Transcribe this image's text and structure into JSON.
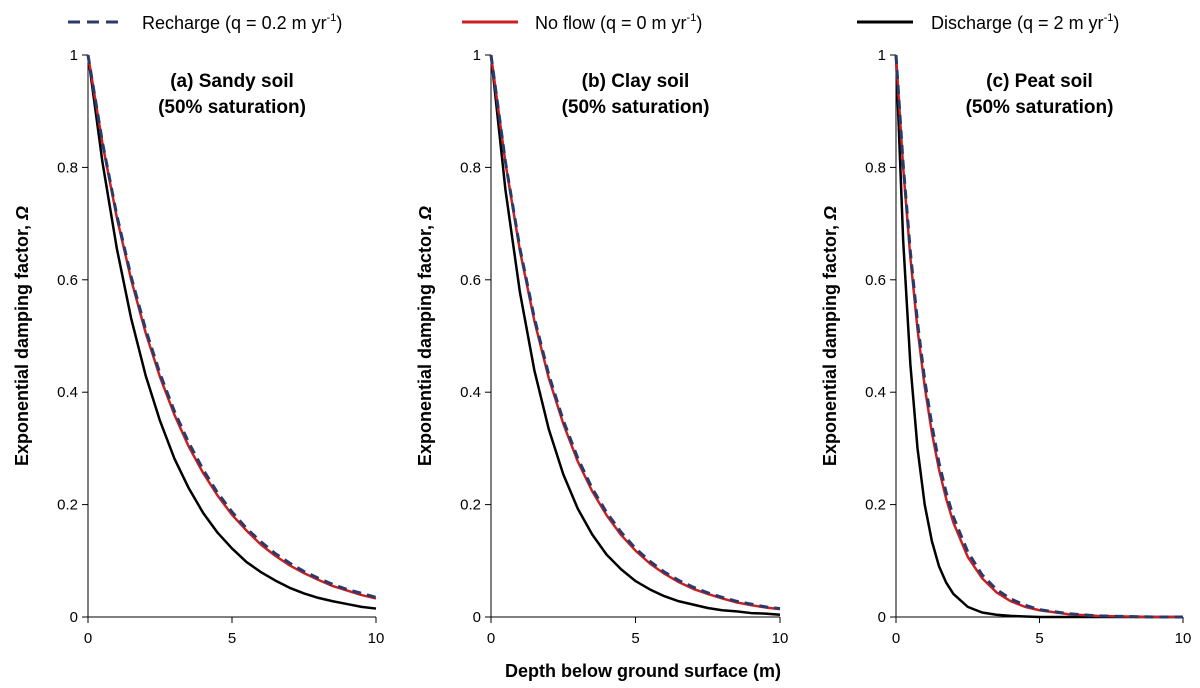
{
  "legend": {
    "recharge": "Recharge (q = 0.2 m yr-1)",
    "noflow": "No flow (q = 0 m yr-1)",
    "discharge": "Discharge (q = 2 m yr-1)"
  },
  "colors": {
    "recharge": "#2b3a6b",
    "noflow": "#cc1f1f",
    "discharge": "#000000"
  },
  "xlabel": "Depth below ground surface (m)",
  "chart_data": [
    {
      "type": "line",
      "title": [
        "(a) Sandy soil",
        "(50% saturation)"
      ],
      "xlabel": "Depth below ground surface (m)",
      "ylabel": "Exponential damping factor, Ω",
      "xlim": [
        0,
        10
      ],
      "ylim": [
        0,
        1
      ],
      "xticks": [
        0,
        5,
        10
      ],
      "yticks": [
        0,
        0.2,
        0.4,
        0.6,
        0.8,
        1
      ],
      "x": [
        0,
        0.5,
        1,
        1.5,
        2,
        2.5,
        3,
        3.5,
        4,
        4.5,
        5,
        5.5,
        6,
        6.5,
        7,
        7.5,
        8,
        8.5,
        9,
        9.5,
        10
      ],
      "series": [
        {
          "name": "Recharge (q = 0.2 m yr-1)",
          "key": "recharge",
          "values": [
            1,
            0.845,
            0.715,
            0.605,
            0.512,
            0.433,
            0.366,
            0.31,
            0.262,
            0.221,
            0.187,
            0.158,
            0.134,
            0.113,
            0.096,
            0.081,
            0.069,
            0.058,
            0.049,
            0.042,
            0.035
          ]
        },
        {
          "name": "No flow (q = 0 m yr-1)",
          "key": "noflow",
          "values": [
            1,
            0.843,
            0.711,
            0.6,
            0.506,
            0.427,
            0.36,
            0.303,
            0.256,
            0.216,
            0.182,
            0.154,
            0.129,
            0.109,
            0.092,
            0.078,
            0.066,
            0.055,
            0.047,
            0.039,
            0.033
          ]
        },
        {
          "name": "Discharge (q = 2 m yr-1)",
          "key": "discharge",
          "values": [
            1,
            0.81,
            0.656,
            0.531,
            0.43,
            0.349,
            0.282,
            0.229,
            0.185,
            0.15,
            0.122,
            0.098,
            0.08,
            0.065,
            0.052,
            0.042,
            0.034,
            0.028,
            0.023,
            0.018,
            0.015
          ]
        }
      ]
    },
    {
      "type": "line",
      "title": [
        "(b) Clay soil",
        "(50% saturation)"
      ],
      "xlabel": "Depth below ground surface (m)",
      "ylabel": "Exponential damping factor, Ω",
      "xlim": [
        0,
        10
      ],
      "ylim": [
        0,
        1
      ],
      "xticks": [
        0,
        5,
        10
      ],
      "yticks": [
        0,
        0.2,
        0.4,
        0.6,
        0.8,
        1
      ],
      "x": [
        0,
        0.5,
        1,
        1.5,
        2,
        2.5,
        3,
        3.5,
        4,
        4.5,
        5,
        5.5,
        6,
        6.5,
        7,
        7.5,
        8,
        8.5,
        9,
        9.5,
        10
      ],
      "series": [
        {
          "name": "Recharge (q = 0.2 m yr-1)",
          "key": "recharge",
          "values": [
            1,
            0.81,
            0.656,
            0.532,
            0.431,
            0.35,
            0.283,
            0.229,
            0.186,
            0.151,
            0.122,
            0.099,
            0.08,
            0.065,
            0.053,
            0.043,
            0.035,
            0.028,
            0.023,
            0.018,
            0.015
          ]
        },
        {
          "name": "No flow (q = 0 m yr-1)",
          "key": "noflow",
          "values": [
            1,
            0.808,
            0.652,
            0.527,
            0.425,
            0.344,
            0.277,
            0.224,
            0.181,
            0.146,
            0.118,
            0.095,
            0.077,
            0.062,
            0.05,
            0.041,
            0.033,
            0.026,
            0.021,
            0.017,
            0.014
          ]
        },
        {
          "name": "Discharge (q = 2 m yr-1)",
          "key": "discharge",
          "values": [
            1,
            0.76,
            0.578,
            0.439,
            0.334,
            0.254,
            0.193,
            0.147,
            0.111,
            0.085,
            0.064,
            0.049,
            0.037,
            0.028,
            0.022,
            0.016,
            0.012,
            0.01,
            0.007,
            0.006,
            0.004
          ]
        }
      ]
    },
    {
      "type": "line",
      "title": [
        "(c) Peat soil",
        "(50% saturation)"
      ],
      "xlabel": "Depth below ground surface (m)",
      "ylabel": "Exponential damping factor, Ω",
      "xlim": [
        0,
        10
      ],
      "ylim": [
        0,
        1
      ],
      "xticks": [
        0,
        5,
        10
      ],
      "yticks": [
        0,
        0.2,
        0.4,
        0.6,
        0.8,
        1
      ],
      "x": [
        0,
        0.25,
        0.5,
        0.75,
        1,
        1.25,
        1.5,
        1.75,
        2,
        2.5,
        3,
        3.5,
        4,
        4.5,
        5,
        6,
        7,
        8,
        9,
        10
      ],
      "series": [
        {
          "name": "Recharge (q = 0.2 m yr-1)",
          "key": "recharge",
          "values": [
            1,
            0.806,
            0.65,
            0.524,
            0.422,
            0.341,
            0.274,
            0.221,
            0.178,
            0.116,
            0.075,
            0.049,
            0.032,
            0.021,
            0.013,
            0.006,
            0.002,
            0.001,
            0,
            0
          ]
        },
        {
          "name": "No flow (q = 0 m yr-1)",
          "key": "noflow",
          "values": [
            1,
            0.8,
            0.64,
            0.512,
            0.41,
            0.328,
            0.262,
            0.21,
            0.168,
            0.107,
            0.069,
            0.044,
            0.028,
            0.018,
            0.012,
            0.005,
            0.002,
            0.001,
            0,
            0
          ]
        },
        {
          "name": "Discharge (q = 2 m yr-1)",
          "key": "discharge",
          "values": [
            1,
            0.67,
            0.45,
            0.3,
            0.2,
            0.135,
            0.09,
            0.061,
            0.041,
            0.018,
            0.008,
            0.004,
            0.002,
            0.001,
            0,
            0,
            0,
            0,
            0,
            0
          ]
        }
      ]
    }
  ]
}
